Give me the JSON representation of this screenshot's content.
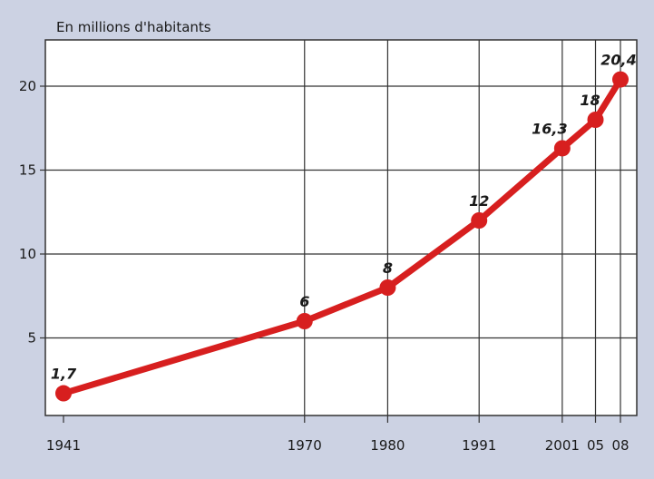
{
  "chart_data": {
    "type": "line",
    "title": "",
    "ylabel": "En millions d'habitants",
    "xlabel": "",
    "x": [
      1941,
      1970,
      1980,
      1991,
      2001,
      2005,
      2008
    ],
    "x_tick_labels": [
      "1941",
      "1970",
      "1980",
      "1991",
      "2001",
      "05",
      "08"
    ],
    "y_ticks": [
      5,
      10,
      15,
      20
    ],
    "series": [
      {
        "values": [
          1.7,
          6,
          8,
          12,
          16.3,
          18,
          20.4
        ],
        "labels": [
          "1,7",
          "6",
          "8",
          "12",
          "16,3",
          "18",
          "20,4"
        ]
      }
    ],
    "xlim": [
      1941,
      2008
    ],
    "ylim": [
      0,
      22
    ],
    "grid": true,
    "colors": {
      "line": "#d71f1f",
      "background": "#ccd2e3",
      "plot_area": "#ffffff",
      "grid": "#333333"
    }
  }
}
